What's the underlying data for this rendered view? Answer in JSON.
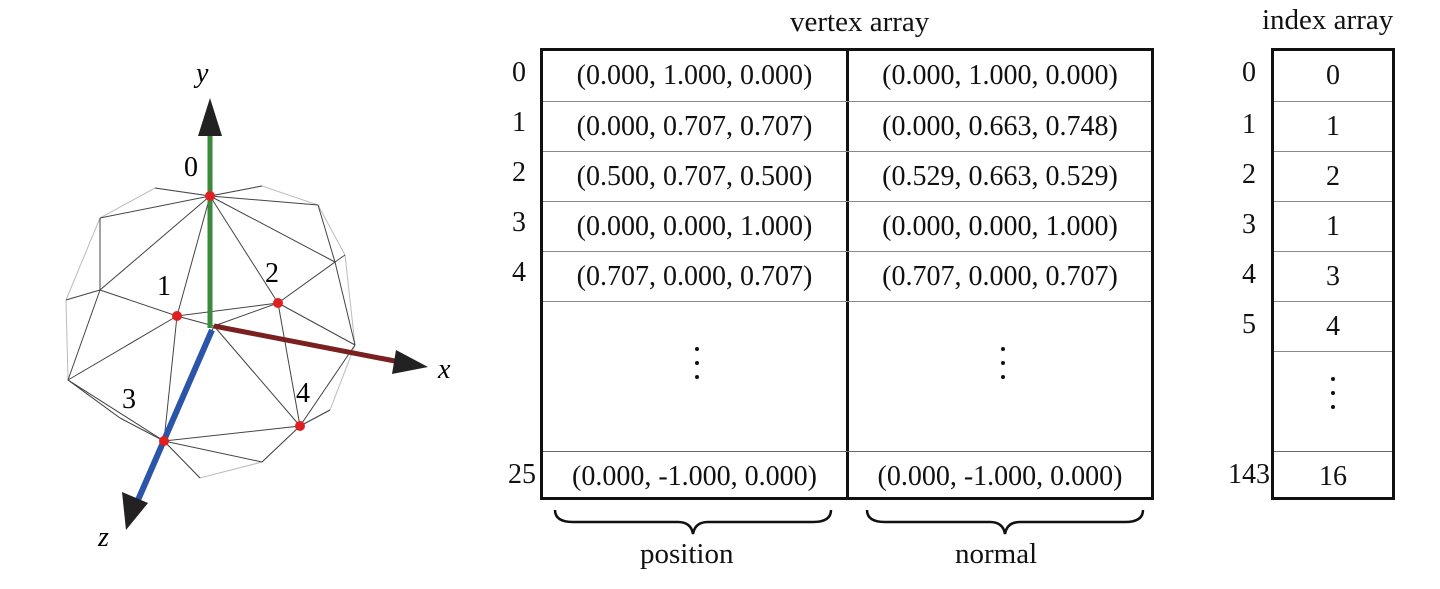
{
  "sphere": {
    "axes": {
      "x": "x",
      "y": "y",
      "z": "z"
    },
    "vertex_labels": [
      "0",
      "1",
      "2",
      "3",
      "4"
    ],
    "colors": {
      "y_axis": "#3a8a3a",
      "x_axis": "#7a2020",
      "z_axis": "#2a55a8",
      "vertex": "#e02020"
    }
  },
  "vertex_array": {
    "title": "vertex array",
    "rows": [
      {
        "index": "0",
        "position": "(0.000, 1.000, 0.000)",
        "normal": "(0.000, 1.000, 0.000)"
      },
      {
        "index": "1",
        "position": "(0.000, 0.707, 0.707)",
        "normal": "(0.000, 0.663, 0.748)"
      },
      {
        "index": "2",
        "position": "(0.500, 0.707, 0.500)",
        "normal": "(0.529, 0.663, 0.529)"
      },
      {
        "index": "3",
        "position": "(0.000, 0.000, 1.000)",
        "normal": "(0.000, 0.000, 1.000)"
      },
      {
        "index": "4",
        "position": "(0.707, 0.000, 0.707)",
        "normal": "(0.707, 0.000, 0.707)"
      }
    ],
    "last_row": {
      "index": "25",
      "position": "(0.000, -1.000, 0.000)",
      "normal": "(0.000, -1.000, 0.000)"
    },
    "brace_labels": {
      "position": "position",
      "normal": "normal"
    }
  },
  "index_array": {
    "title": "index array",
    "rows": [
      {
        "index": "0",
        "value": "0"
      },
      {
        "index": "1",
        "value": "1"
      },
      {
        "index": "2",
        "value": "2"
      },
      {
        "index": "3",
        "value": "1"
      },
      {
        "index": "4",
        "value": "3"
      },
      {
        "index": "5",
        "value": "4"
      }
    ],
    "last_row": {
      "index": "143",
      "value": "16"
    }
  }
}
